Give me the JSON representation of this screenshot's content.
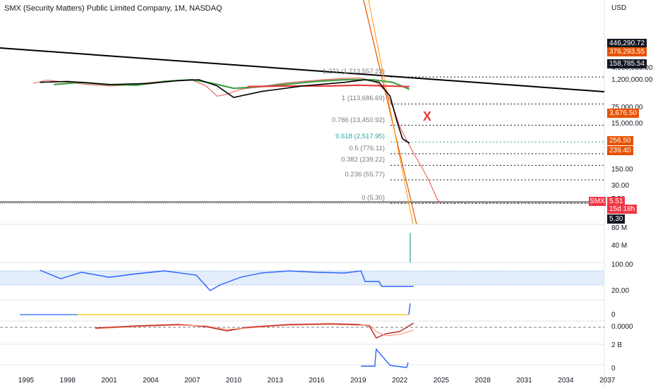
{
  "header": {
    "title": "SMX (Security Matters) Public Limited Company, 1M, NASDAQ",
    "currency": "USD"
  },
  "colors": {
    "red": "#f23645",
    "orange": "#e65100",
    "black": "#000000",
    "green": "#43a047",
    "blue": "#2962ff",
    "yellow": "#f5c400",
    "grey": "#787b86"
  },
  "chart_data": {
    "type": "line",
    "x_axis_labels": [
      "1995",
      "1998",
      "2001",
      "2004",
      "2007",
      "2010",
      "2013",
      "2016",
      "2019",
      "2022",
      "2025",
      "2028",
      "2031",
      "2034",
      "2037"
    ],
    "price_scale": {
      "scale": "log",
      "tick_labels": [
        "4,000,000.00",
        "1,200,000.00",
        "75,000.00",
        "15,000.00",
        "750.00",
        "150.00",
        "30.00",
        "7.50"
      ]
    },
    "price_tags": [
      {
        "label": "446,290.72",
        "style": "black"
      },
      {
        "label": "376,293.55",
        "style": "orange"
      },
      {
        "label": "158,785.54",
        "style": "black"
      },
      {
        "label": "3,676.50",
        "style": "orange"
      },
      {
        "label": "256.50",
        "style": "orange"
      },
      {
        "label": "239.40",
        "style": "orange"
      },
      {
        "label": "5.51",
        "style": "red"
      },
      {
        "label": "15d 18h",
        "style": "red"
      },
      {
        "label": "5.30",
        "style": "black"
      }
    ],
    "symbol_tag": "SMX",
    "fib_levels": [
      {
        "label": "1.272 (1,713,557.23)",
        "value": 1713557.23
      },
      {
        "label": "1 (113,686.69)",
        "value": 113686.69
      },
      {
        "label": "0.786 (13,450.92)",
        "value": 13450.92
      },
      {
        "label": "0.618 (2,517.95)",
        "value": 2517.95
      },
      {
        "label": "0.5 (776.11)",
        "value": 776.11
      },
      {
        "label": "0.382 (239.22)",
        "value": 239.22
      },
      {
        "label": "0.236 (55.77)",
        "value": 55.77
      },
      {
        "label": "0 (5.30)",
        "value": 5.3
      }
    ],
    "annotation": "X",
    "volume_scale": [
      "80 M",
      "40 M"
    ],
    "rsi_scale": [
      "100.00",
      "20.00"
    ],
    "panel3_scale": [
      "0"
    ],
    "panel4_scale": [
      "0.0000"
    ],
    "panel5_scale": [
      "2 B",
      "0"
    ]
  }
}
